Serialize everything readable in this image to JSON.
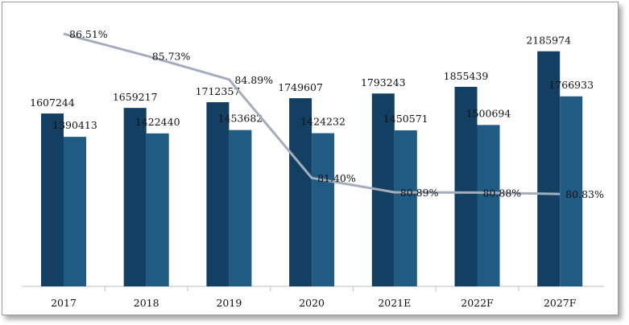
{
  "chart_data": {
    "type": "bar",
    "categories": [
      "2017",
      "2018",
      "2019",
      "2020",
      "2021E",
      "2022F",
      "2027F"
    ],
    "series": [
      {
        "values": [
          1607244,
          1659217,
          1712357,
          1749607,
          1793243,
          1855439,
          2185974
        ],
        "color": "#123f62"
      },
      {
        "values": [
          1390413,
          1422440,
          1453682,
          1424232,
          1450571,
          1500694,
          1766933
        ],
        "color": "#1f5b82"
      }
    ],
    "line_series": {
      "type": "line",
      "values": [
        86.51,
        85.73,
        84.89,
        81.4,
        80.89,
        80.88,
        80.83
      ],
      "labels": [
        "86.51%",
        "85.73%",
        "84.89%",
        "81.40%",
        "80.89%",
        "80.88%",
        "80.83%"
      ],
      "color": "#a4adbb"
    },
    "title": "",
    "xlabel": "",
    "ylabel": "",
    "grid": false,
    "legend": "none"
  }
}
